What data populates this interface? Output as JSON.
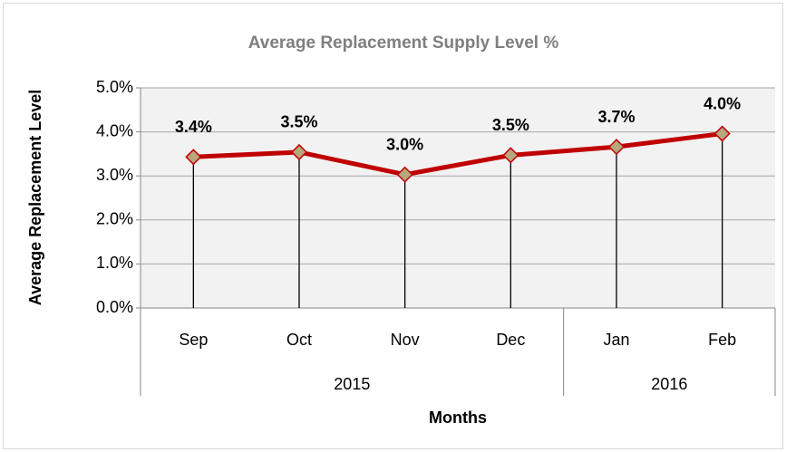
{
  "chart_data": {
    "type": "line",
    "title": "Average Replacement Supply Level %",
    "x_label": "Months",
    "y_label": "Average Replacement Level",
    "groups": [
      {
        "name": "2015",
        "categories": [
          "Sep",
          "Oct",
          "Nov",
          "Dec"
        ]
      },
      {
        "name": "2016",
        "categories": [
          "Jan",
          "Feb"
        ]
      }
    ],
    "values": [
      3.43,
      3.54,
      3.03,
      3.47,
      3.66,
      3.96
    ],
    "value_labels": [
      "3.4%",
      "3.5%",
      "3.0%",
      "3.5%",
      "3.7%",
      "4.0%"
    ],
    "color": "#c00000",
    "marker_color": "#b8a67c",
    "drop_lines": true,
    "ylim": [
      0,
      5
    ],
    "yticks": [
      {
        "value": 0,
        "label": "0.0%"
      },
      {
        "value": 1,
        "label": "1.0%"
      },
      {
        "value": 2,
        "label": "2.0%"
      },
      {
        "value": 3,
        "label": "3.0%"
      },
      {
        "value": 4,
        "label": "4.0%"
      },
      {
        "value": 5,
        "label": "5.0%"
      }
    ],
    "grid": true
  }
}
